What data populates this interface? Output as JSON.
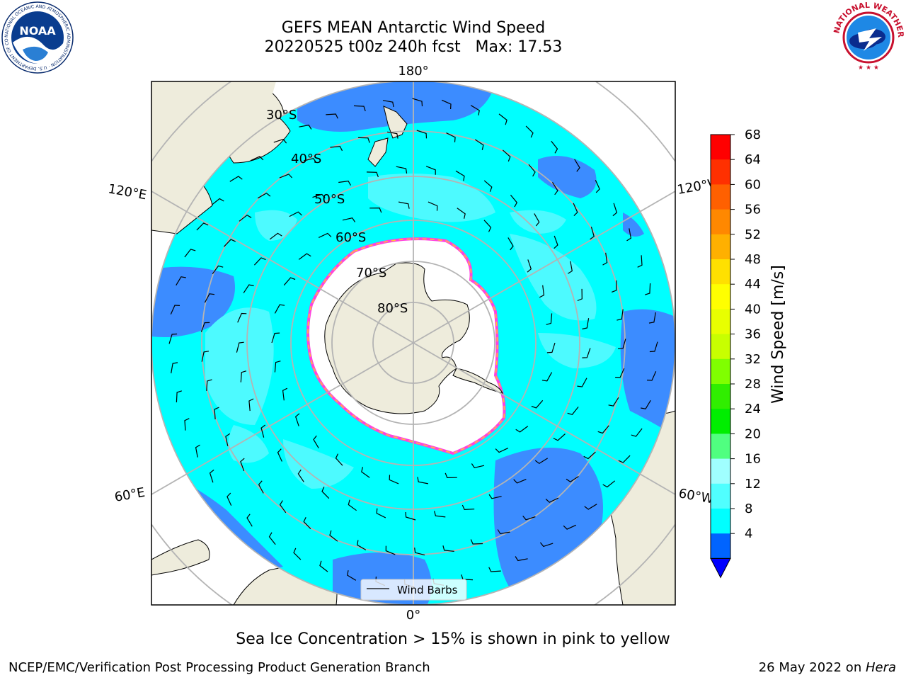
{
  "title": {
    "line1": "GEFS MEAN Antarctic Wind Speed",
    "line2": "20220525 t00z 240h fcst   Max: 17.53"
  },
  "logos": {
    "left": {
      "icon": "noaa-logo",
      "text": "NOAA",
      "ring": "NATIONAL OCEANIC AND ATMOSPHERIC ADMINISTRATION · U.S. DEPARTMENT OF COMMERCE"
    },
    "right": {
      "icon": "nws-logo",
      "ring": "NATIONAL WEATHER SERVICE"
    }
  },
  "map": {
    "projection": "south-polar-stereographic",
    "lon_labels": [
      "180°",
      "120°E",
      "120°W",
      "60°E",
      "60°W",
      "0°"
    ],
    "lat_labels": [
      "30°S",
      "40°S",
      "50°S",
      "60°S",
      "70°S",
      "80°S"
    ],
    "legend": "Wind Barbs",
    "colors": {
      "land": "#eeecdc",
      "ocean_4_8": "#3c8cff",
      "ocean_8_12": "#00ffff",
      "ocean_12_16": "#4dfaff",
      "sea_ice": "#ffffff",
      "ice_edge_pink": "#ff44dd",
      "ice_edge_yellow": "#ffc830"
    }
  },
  "colorbar": {
    "label": "Wind Speed [m/s]",
    "ticks": [
      "68",
      "64",
      "60",
      "56",
      "52",
      "48",
      "44",
      "40",
      "36",
      "32",
      "28",
      "24",
      "20",
      "16",
      "12",
      "8",
      "4"
    ],
    "colors": [
      "#ff0000",
      "#ff3000",
      "#ff6000",
      "#ff8800",
      "#ffb000",
      "#ffe000",
      "#ffff00",
      "#e8ff00",
      "#c8ff00",
      "#80ff00",
      "#30ee00",
      "#00ee00",
      "#50ff80",
      "#a0ffff",
      "#50ffff",
      "#00ffff",
      "#0064ff"
    ],
    "extend_color": "#0000ff"
  },
  "note": "Sea Ice Concentration > 15% is shown in pink to yellow",
  "footer": {
    "left": "NCEP/EMC/Verification Post Processing Product Generation Branch",
    "right_prefix": "26 May 2022 on ",
    "right_machine": "Hera"
  }
}
